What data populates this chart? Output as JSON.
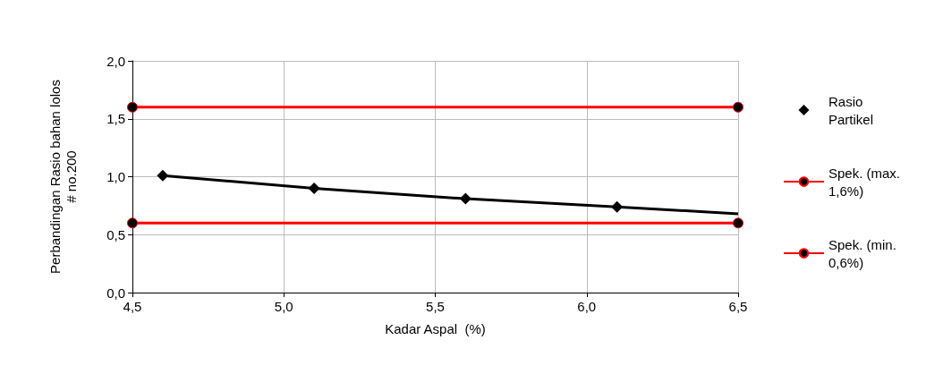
{
  "chart_data": {
    "type": "line",
    "xlabel": "Kadar Aspal  (%)",
    "ylabel": "Perbandingan Rasio bahan lolos\n# no.200",
    "xlim": [
      4.5,
      6.5
    ],
    "xticks": [
      {
        "value": 4.5,
        "label": "4,5"
      },
      {
        "value": 5.0,
        "label": "5,0"
      },
      {
        "value": 5.5,
        "label": "5,5"
      },
      {
        "value": 6.0,
        "label": "6,0"
      },
      {
        "value": 6.5,
        "label": "6,5"
      }
    ],
    "ylim": [
      0,
      2
    ],
    "yticks": [
      {
        "value": 0,
        "label": "0,0"
      },
      {
        "value": 0.5,
        "label": "0,5"
      },
      {
        "value": 1.0,
        "label": "1,0"
      },
      {
        "value": 1.5,
        "label": "1,5"
      },
      {
        "value": 2.0,
        "label": "2,0"
      }
    ],
    "grid": true,
    "legend": "right",
    "series": [
      {
        "name": "Rasio Partikel",
        "type": "scatter",
        "marker": "diamond",
        "color": "#000000",
        "x": [
          4.6,
          5.1,
          5.6,
          6.1
        ],
        "values": [
          1.01,
          0.9,
          0.81,
          0.74
        ]
      },
      {
        "marker": "none",
        "color": "#000000",
        "x": [
          4.6,
          5.1,
          5.6,
          6.1,
          6.5
        ],
        "values": [
          1.01,
          0.9,
          0.81,
          0.74,
          0.68
        ]
      },
      {
        "name": "Spek. (max. 1,6%)",
        "marker": "circle",
        "color": "#ff0000",
        "x": [
          4.5,
          6.5
        ],
        "values": [
          1.6,
          1.6
        ]
      },
      {
        "name": "Spek. (min. 0,6%)",
        "marker": "circle",
        "color": "#ff0000",
        "x": [
          4.5,
          6.5
        ],
        "values": [
          0.6,
          0.6
        ]
      }
    ]
  }
}
